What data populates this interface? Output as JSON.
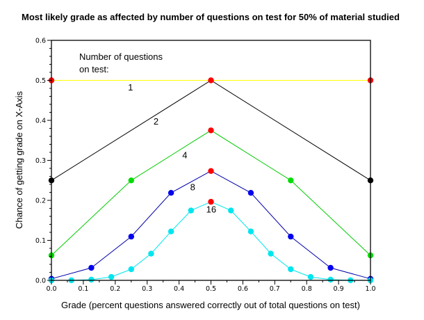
{
  "chart_data": {
    "type": "line",
    "title": "Most likely grade as affected by number of questions on test for 50% of material studied",
    "xlabel": "Grade (percent questions answered correctly out of total questions on test)",
    "ylabel": "Chance of getting grade on X-Axis",
    "xlim": [
      0.0,
      1.0
    ],
    "ylim": [
      0.0,
      0.6
    ],
    "x_ticks": [
      "0.0",
      "0.1",
      "0.2",
      "0.3",
      "0.4",
      "0.5",
      "0.6",
      "0.7",
      "0.8",
      "0.9",
      "1.0"
    ],
    "y_ticks": [
      "0.0",
      "0.1",
      "0.2",
      "0.3",
      "0.4",
      "0.5",
      "0.6"
    ],
    "grid": false,
    "legend_title": [
      "Number of questions",
      "on test:"
    ],
    "series": [
      {
        "name": "1",
        "color": "#ffff00",
        "marker_color": "#000000",
        "x": [
          0.0,
          1.0
        ],
        "y": [
          0.5,
          0.5
        ]
      },
      {
        "name": "2",
        "color": "#000000",
        "marker_color": "#000000",
        "x": [
          0.0,
          0.5,
          1.0
        ],
        "y": [
          0.25,
          0.5,
          0.25
        ]
      },
      {
        "name": "4",
        "color": "#00cc00",
        "marker_color": "#00dd00",
        "x": [
          0.0,
          0.25,
          0.5,
          0.75,
          1.0
        ],
        "y": [
          0.0625,
          0.25,
          0.375,
          0.25,
          0.0625
        ]
      },
      {
        "name": "8",
        "color": "#0000aa",
        "marker_color": "#0000ee",
        "x": [
          0.0,
          0.125,
          0.25,
          0.375,
          0.5,
          0.625,
          0.75,
          0.875,
          1.0
        ],
        "y": [
          0.0039,
          0.0313,
          0.1094,
          0.2188,
          0.2734,
          0.2188,
          0.1094,
          0.0313,
          0.0039
        ]
      },
      {
        "name": "16",
        "color": "#00e5ee",
        "marker_color": "#00e5ee",
        "x": [
          0.0,
          0.0625,
          0.125,
          0.1875,
          0.25,
          0.3125,
          0.375,
          0.4375,
          0.5,
          0.5625,
          0.625,
          0.6875,
          0.75,
          0.8125,
          0.875,
          0.9375,
          1.0
        ],
        "y": [
          0.0,
          0.0002,
          0.0018,
          0.0085,
          0.0278,
          0.0667,
          0.1222,
          0.1746,
          0.1964,
          0.1746,
          0.1222,
          0.0667,
          0.0278,
          0.0085,
          0.0018,
          0.0002,
          0.0
        ]
      }
    ],
    "peak_marker_color": "#ff0000",
    "series_labels": [
      {
        "text": "1",
        "x": 0.24,
        "y": 0.475
      },
      {
        "text": "2",
        "x": 0.32,
        "y": 0.39
      },
      {
        "text": "4",
        "x": 0.41,
        "y": 0.305
      },
      {
        "text": "8",
        "x": 0.435,
        "y": 0.225
      },
      {
        "text": "16",
        "x": 0.485,
        "y": 0.17
      }
    ]
  }
}
